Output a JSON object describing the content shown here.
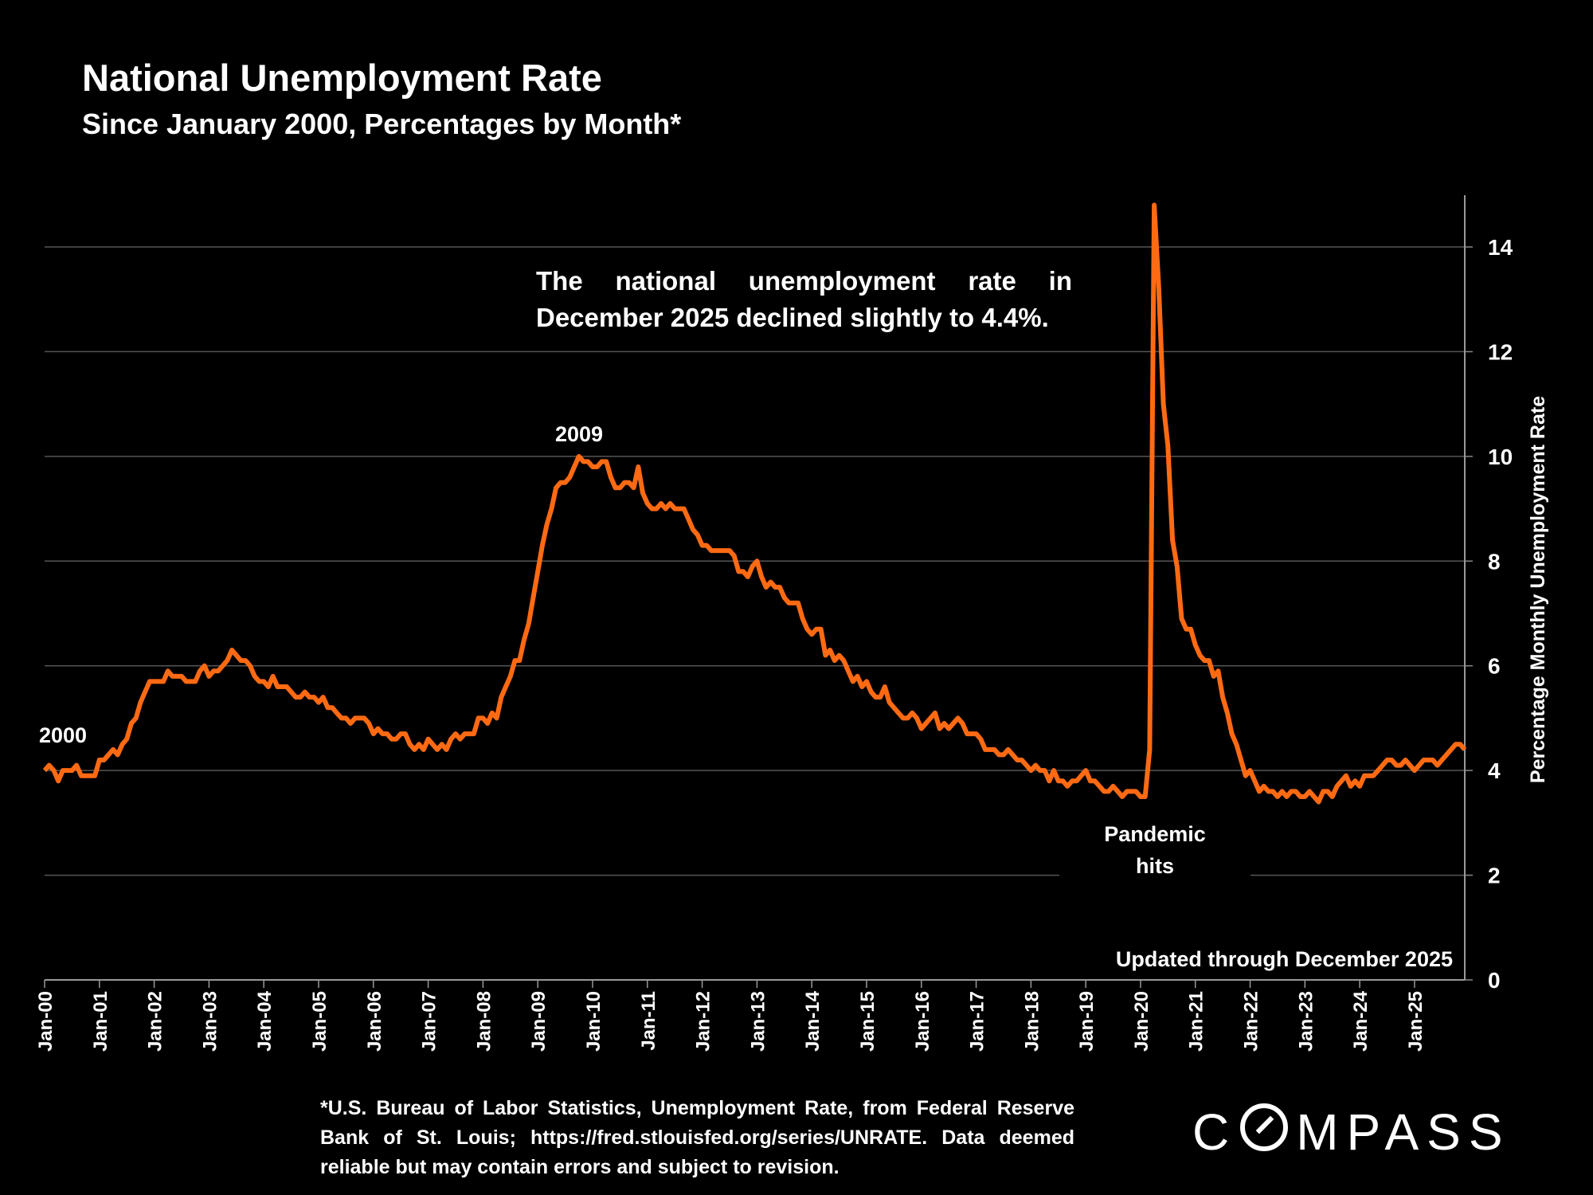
{
  "title": "National Unemployment Rate",
  "subtitle": "Since January 2000, Percentages by Month*",
  "annotation": "The national unemployment rate in December 2025 declined slightly to 4.4%.",
  "footnote": "*U.S. Bureau of Labor Statistics, Unemployment Rate, from Federal Reserve Bank of St. Louis; https://fred.stlouisfed.org/series/UNRATE. Data deemed reliable but may contain errors and subject to revision.",
  "logo": "COMPASS",
  "colors": {
    "line": "#FF6A13",
    "background": "#000000",
    "grid": "#555555",
    "text": "#FFFFFF"
  },
  "chart_data": {
    "type": "line",
    "title": "National Unemployment Rate",
    "subtitle": "Since January 2000, Percentages by Month*",
    "ylabel": "Percentage Monthly Unemployment Rate",
    "y_axis_side": "right",
    "ylim": [
      0,
      15
    ],
    "yticks": [
      "0",
      "2",
      "4",
      "6",
      "8",
      "10",
      "12",
      "14"
    ],
    "x_start": "Jan-00",
    "x_end": "Dec-25",
    "frequency": "monthly",
    "xticks": [
      "Jan-00",
      "Jan-01",
      "Jan-02",
      "Jan-03",
      "Jan-04",
      "Jan-05",
      "Jan-06",
      "Jan-07",
      "Jan-08",
      "Jan-09",
      "Jan-10",
      "Jan-11",
      "Jan-12",
      "Jan-13",
      "Jan-14",
      "Jan-15",
      "Jan-16",
      "Jan-17",
      "Jan-18",
      "Jan-19",
      "Jan-20",
      "Jan-21",
      "Jan-22",
      "Jan-23",
      "Jan-24",
      "Jan-25"
    ],
    "grid": true,
    "annotations": [
      {
        "text": "2000",
        "at": "Jan-00"
      },
      {
        "text": "2009",
        "at": "Oct-09"
      },
      {
        "text": "Pandemic hits",
        "at": "Apr-20"
      },
      {
        "text": "Updated through December 2025",
        "at": "bottom-right"
      }
    ],
    "values": [
      4.0,
      4.1,
      4.0,
      3.8,
      4.0,
      4.0,
      4.0,
      4.1,
      3.9,
      3.9,
      3.9,
      3.9,
      4.2,
      4.2,
      4.3,
      4.4,
      4.3,
      4.5,
      4.6,
      4.9,
      5.0,
      5.3,
      5.5,
      5.7,
      5.7,
      5.7,
      5.7,
      5.9,
      5.8,
      5.8,
      5.8,
      5.7,
      5.7,
      5.7,
      5.9,
      6.0,
      5.8,
      5.9,
      5.9,
      6.0,
      6.1,
      6.3,
      6.2,
      6.1,
      6.1,
      6.0,
      5.8,
      5.7,
      5.7,
      5.6,
      5.8,
      5.6,
      5.6,
      5.6,
      5.5,
      5.4,
      5.4,
      5.5,
      5.4,
      5.4,
      5.3,
      5.4,
      5.2,
      5.2,
      5.1,
      5.0,
      5.0,
      4.9,
      5.0,
      5.0,
      5.0,
      4.9,
      4.7,
      4.8,
      4.7,
      4.7,
      4.6,
      4.6,
      4.7,
      4.7,
      4.5,
      4.4,
      4.5,
      4.4,
      4.6,
      4.5,
      4.4,
      4.5,
      4.4,
      4.6,
      4.7,
      4.6,
      4.7,
      4.7,
      4.7,
      5.0,
      5.0,
      4.9,
      5.1,
      5.0,
      5.4,
      5.6,
      5.8,
      6.1,
      6.1,
      6.5,
      6.8,
      7.3,
      7.8,
      8.3,
      8.7,
      9.0,
      9.4,
      9.5,
      9.5,
      9.6,
      9.8,
      10.0,
      9.9,
      9.9,
      9.8,
      9.8,
      9.9,
      9.9,
      9.6,
      9.4,
      9.4,
      9.5,
      9.5,
      9.4,
      9.8,
      9.3,
      9.1,
      9.0,
      9.0,
      9.1,
      9.0,
      9.1,
      9.0,
      9.0,
      9.0,
      8.8,
      8.6,
      8.5,
      8.3,
      8.3,
      8.2,
      8.2,
      8.2,
      8.2,
      8.2,
      8.1,
      7.8,
      7.8,
      7.7,
      7.9,
      8.0,
      7.7,
      7.5,
      7.6,
      7.5,
      7.5,
      7.3,
      7.2,
      7.2,
      7.2,
      6.9,
      6.7,
      6.6,
      6.7,
      6.7,
      6.2,
      6.3,
      6.1,
      6.2,
      6.1,
      5.9,
      5.7,
      5.8,
      5.6,
      5.7,
      5.5,
      5.4,
      5.4,
      5.6,
      5.3,
      5.2,
      5.1,
      5.0,
      5.0,
      5.1,
      5.0,
      4.8,
      4.9,
      5.0,
      5.1,
      4.8,
      4.9,
      4.8,
      4.9,
      5.0,
      4.9,
      4.7,
      4.7,
      4.7,
      4.6,
      4.4,
      4.4,
      4.4,
      4.3,
      4.3,
      4.4,
      4.3,
      4.2,
      4.2,
      4.1,
      4.0,
      4.1,
      4.0,
      4.0,
      3.8,
      4.0,
      3.8,
      3.8,
      3.7,
      3.8,
      3.8,
      3.9,
      4.0,
      3.8,
      3.8,
      3.7,
      3.6,
      3.6,
      3.7,
      3.6,
      3.5,
      3.6,
      3.6,
      3.6,
      3.5,
      3.5,
      4.4,
      14.8,
      13.2,
      11.0,
      10.2,
      8.4,
      7.9,
      6.9,
      6.7,
      6.7,
      6.4,
      6.2,
      6.1,
      6.1,
      5.8,
      5.9,
      5.4,
      5.1,
      4.7,
      4.5,
      4.2,
      3.9,
      4.0,
      3.8,
      3.6,
      3.7,
      3.6,
      3.6,
      3.5,
      3.6,
      3.5,
      3.6,
      3.6,
      3.5,
      3.5,
      3.6,
      3.5,
      3.4,
      3.6,
      3.6,
      3.5,
      3.7,
      3.8,
      3.9,
      3.7,
      3.8,
      3.7,
      3.9,
      3.9,
      3.9,
      4.0,
      4.1,
      4.2,
      4.2,
      4.1,
      4.1,
      4.2,
      4.1,
      4.0,
      4.1,
      4.2,
      4.2,
      4.2,
      4.1,
      4.2,
      4.3,
      4.4,
      4.5,
      4.5,
      4.4
    ]
  }
}
